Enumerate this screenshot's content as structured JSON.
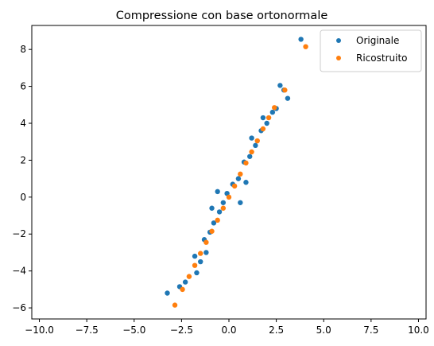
{
  "chart_data": {
    "type": "scatter",
    "title": "Compressione con base ortonormale",
    "xlabel": "",
    "ylabel": "",
    "xlim": [
      -10.4,
      10.4
    ],
    "ylim": [
      -6.6,
      9.3
    ],
    "xticks": [
      -10.0,
      -7.5,
      -5.0,
      -2.5,
      0.0,
      2.5,
      5.0,
      7.5,
      10.0
    ],
    "xtick_labels": [
      "−10.0",
      "−7.5",
      "−5.0",
      "−2.5",
      "0.0",
      "2.5",
      "5.0",
      "7.5",
      "10.0"
    ],
    "yticks": [
      -6,
      -4,
      -2,
      0,
      2,
      4,
      6,
      8
    ],
    "ytick_labels": [
      "−6",
      "−4",
      "−2",
      "0",
      "2",
      "4",
      "6",
      "8"
    ],
    "grid": false,
    "legend_position": "top-right",
    "series": [
      {
        "name": "Originale",
        "color": "#1f77b4",
        "points": [
          [
            3.8,
            8.55
          ],
          [
            2.7,
            6.05
          ],
          [
            3.1,
            5.35
          ],
          [
            2.9,
            5.8
          ],
          [
            -3.25,
            -5.2
          ],
          [
            -2.6,
            -4.85
          ],
          [
            -2.3,
            -4.6
          ],
          [
            -1.8,
            -3.2
          ],
          [
            -1.5,
            -3.5
          ],
          [
            -1.3,
            -2.3
          ],
          [
            -1.0,
            -1.9
          ],
          [
            -0.8,
            -1.4
          ],
          [
            -0.5,
            -0.8
          ],
          [
            -0.3,
            -0.3
          ],
          [
            -0.1,
            0.2
          ],
          [
            0.2,
            0.7
          ],
          [
            0.5,
            1.0
          ],
          [
            0.8,
            1.9
          ],
          [
            1.1,
            2.2
          ],
          [
            1.4,
            2.8
          ],
          [
            1.7,
            3.6
          ],
          [
            2.0,
            4.0
          ],
          [
            2.3,
            4.6
          ],
          [
            2.5,
            4.8
          ],
          [
            -0.6,
            0.3
          ],
          [
            0.6,
            -0.3
          ],
          [
            1.2,
            3.2
          ],
          [
            -1.2,
            -3.0
          ],
          [
            0.9,
            0.8
          ],
          [
            -0.9,
            -0.6
          ],
          [
            1.8,
            4.3
          ],
          [
            -1.7,
            -4.1
          ]
        ]
      },
      {
        "name": "Ricostruito",
        "color": "#ff7f0e",
        "points": [
          [
            4.05,
            8.15
          ],
          [
            2.95,
            5.8
          ],
          [
            -2.85,
            -5.85
          ],
          [
            -2.45,
            -5.0
          ],
          [
            -2.1,
            -4.3
          ],
          [
            -1.8,
            -3.7
          ],
          [
            -1.5,
            -3.05
          ],
          [
            -1.2,
            -2.45
          ],
          [
            -0.9,
            -1.85
          ],
          [
            -0.6,
            -1.25
          ],
          [
            -0.3,
            -0.6
          ],
          [
            0.0,
            0.0
          ],
          [
            0.3,
            0.6
          ],
          [
            0.6,
            1.25
          ],
          [
            0.9,
            1.85
          ],
          [
            1.2,
            2.45
          ],
          [
            1.5,
            3.05
          ],
          [
            1.8,
            3.7
          ],
          [
            2.1,
            4.3
          ],
          [
            2.4,
            4.85
          ]
        ]
      }
    ]
  }
}
